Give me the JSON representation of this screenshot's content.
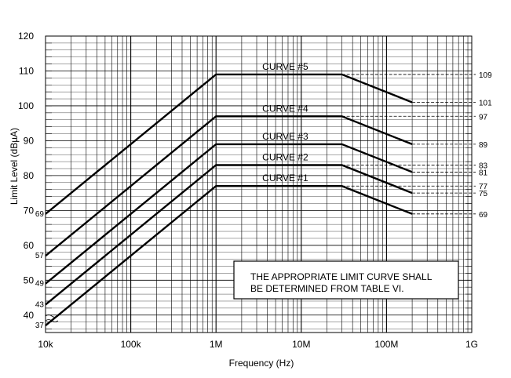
{
  "chart_data": {
    "type": "line",
    "title": "",
    "xlabel": "Frequency (Hz)",
    "ylabel": "Limit Level (dBµA)",
    "x_scale": "log",
    "xlim": [
      10000,
      1000000000
    ],
    "ylim": [
      35,
      120
    ],
    "grid": true,
    "x_tick_labels": [
      {
        "value": 10000,
        "label": "10k"
      },
      {
        "value": 100000,
        "label": "100k"
      },
      {
        "value": 1000000,
        "label": "1M"
      },
      {
        "value": 10000000,
        "label": "10M"
      },
      {
        "value": 100000000,
        "label": "100M"
      },
      {
        "value": 1000000000,
        "label": "1G"
      }
    ],
    "y_tick_labels": [
      {
        "value": 40,
        "label": "40"
      },
      {
        "value": 50,
        "label": "50"
      },
      {
        "value": 60,
        "label": "60"
      },
      {
        "value": 70,
        "label": "70"
      },
      {
        "value": 80,
        "label": "80"
      },
      {
        "value": 90,
        "label": "90"
      },
      {
        "value": 100,
        "label": "100"
      },
      {
        "value": 110,
        "label": "110"
      },
      {
        "value": 120,
        "label": "120"
      }
    ],
    "series": [
      {
        "name": "CURVE #1",
        "x": [
          10000,
          1000000,
          30000000,
          200000000
        ],
        "y": [
          37,
          77,
          77,
          69
        ]
      },
      {
        "name": "CURVE #2",
        "x": [
          10000,
          1000000,
          30000000,
          200000000
        ],
        "y": [
          43,
          83,
          83,
          75
        ]
      },
      {
        "name": "CURVE #3",
        "x": [
          10000,
          1000000,
          30000000,
          200000000
        ],
        "y": [
          49,
          89,
          89,
          81
        ]
      },
      {
        "name": "CURVE #4",
        "x": [
          10000,
          1000000,
          30000000,
          200000000
        ],
        "y": [
          57,
          97,
          97,
          89
        ]
      },
      {
        "name": "CURVE #5",
        "x": [
          10000,
          1000000,
          30000000,
          200000000
        ],
        "y": [
          69,
          109,
          109,
          101
        ]
      }
    ],
    "left_annotations": [
      {
        "value": 37,
        "label": "37"
      },
      {
        "value": 43,
        "label": "43"
      },
      {
        "value": 49,
        "label": "49"
      },
      {
        "value": 57,
        "label": "57"
      },
      {
        "value": 69,
        "label": "69"
      }
    ],
    "right_annotations": [
      {
        "value": 109,
        "label": "109",
        "from_x": 30000000
      },
      {
        "value": 101,
        "label": "101",
        "from_x": 200000000
      },
      {
        "value": 97,
        "label": "97",
        "from_x": 30000000
      },
      {
        "value": 89,
        "label": "89",
        "from_x": 200000000
      },
      {
        "value": 83,
        "label": "83",
        "from_x": 30000000
      },
      {
        "value": 81,
        "label": "81",
        "from_x": 200000000
      },
      {
        "value": 77,
        "label": "77",
        "from_x": 30000000
      },
      {
        "value": 75,
        "label": "75",
        "from_x": 200000000
      },
      {
        "value": 69,
        "label": "69",
        "from_x": 200000000
      }
    ],
    "note": [
      "THE APPROPRIATE LIMIT CURVE SHALL",
      "BE DETERMINED FROM TABLE VI."
    ]
  }
}
